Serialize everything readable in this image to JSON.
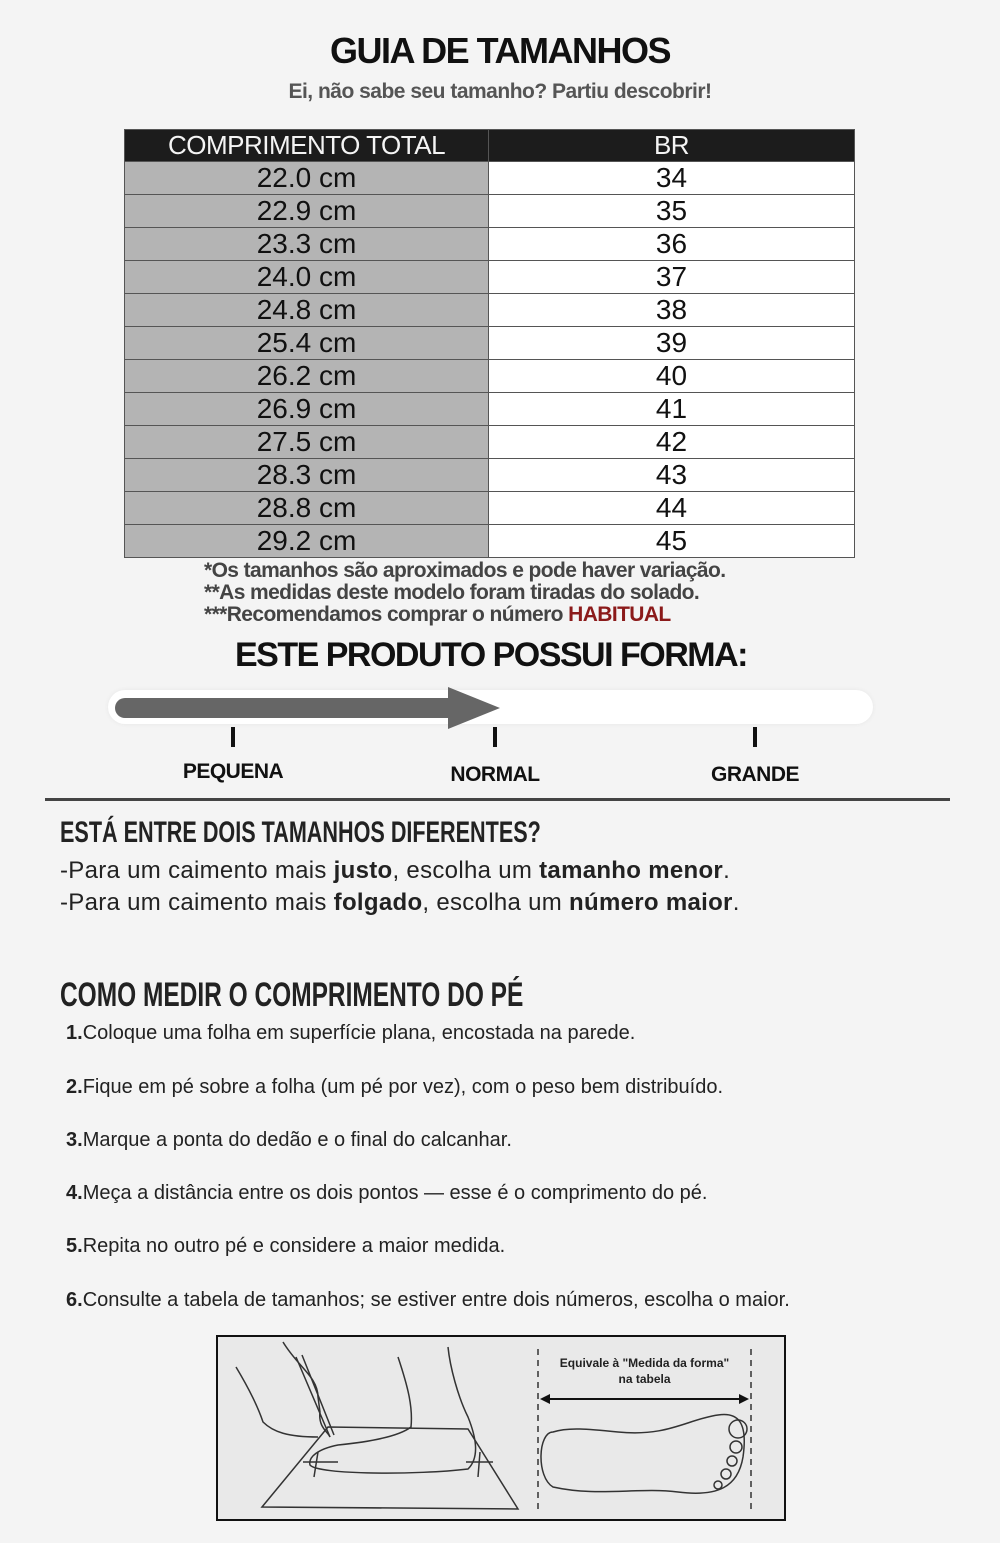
{
  "header": {
    "title": "GUIA DE TAMANHOS",
    "subtitle": "Ei, não sabe seu tamanho? Partiu descobrir!"
  },
  "size_table": {
    "columns": [
      "COMPRIMENTO TOTAL",
      "BR"
    ],
    "rows": [
      [
        "22.0 cm",
        "34"
      ],
      [
        "22.9 cm",
        "35"
      ],
      [
        "23.3 cm",
        "36"
      ],
      [
        "24.0 cm",
        "37"
      ],
      [
        "24.8 cm",
        "38"
      ],
      [
        "25.4 cm",
        "39"
      ],
      [
        "26.2 cm",
        "40"
      ],
      [
        "26.9 cm",
        "41"
      ],
      [
        "27.5 cm",
        "42"
      ],
      [
        "28.3 cm",
        "43"
      ],
      [
        "28.8 cm",
        "44"
      ],
      [
        "29.2 cm",
        "45"
      ]
    ]
  },
  "notes": {
    "note1": "*Os tamanhos são aproximados e pode haver variação.",
    "note2": "**As medidas deste modelo foram tiradas do solado.",
    "note3_prefix": "***Recomendamos comprar o número ",
    "note3_highlight": "HABITUAL",
    "highlight_color": "#8b1a1a"
  },
  "fit_scale": {
    "heading": "ESTE PRODUTO POSSUI FORMA:",
    "labels": [
      "PEQUENA",
      "NORMAL",
      "GRANDE"
    ],
    "selected": "NORMAL",
    "level_percent": 50,
    "arrow_color": "#666666"
  },
  "between_sizes": {
    "heading": "ESTÁ ENTRE DOIS TAMANHOS DIFERENTES?",
    "line1": {
      "a": "-Para um caimento mais ",
      "b": "justo",
      "c": ", escolha um ",
      "d": "tamanho menor",
      "e": "."
    },
    "line2": {
      "a": "-Para um caimento mais ",
      "b": "folgado",
      "c": ", escolha um ",
      "d": "número maior",
      "e": "."
    }
  },
  "how_to_measure": {
    "heading": "COMO MEDIR O COMPRIMENTO DO PÉ",
    "steps": [
      {
        "num": "1.",
        "text": "Coloque uma folha em superfície plana, encostada na parede."
      },
      {
        "num": "2.",
        "text": "Fique em pé sobre a folha (um pé por vez), com o peso bem distribuído."
      },
      {
        "num": "3.",
        "text": "Marque a ponta do dedão e o final do calcanhar."
      },
      {
        "num": "4.",
        "text": "Meça a distância entre os dois pontos — esse é o comprimento do pé."
      },
      {
        "num": "5.",
        "text": "Repita no outro pé e considere a maior medida."
      },
      {
        "num": "6.",
        "text": "Consulte a tabela de tamanhos; se estiver entre dois números, escolha o maior."
      }
    ]
  },
  "illustration": {
    "caption_line1": "Equivale à \"Medida da forma\"",
    "caption_line2": "na tabela"
  }
}
